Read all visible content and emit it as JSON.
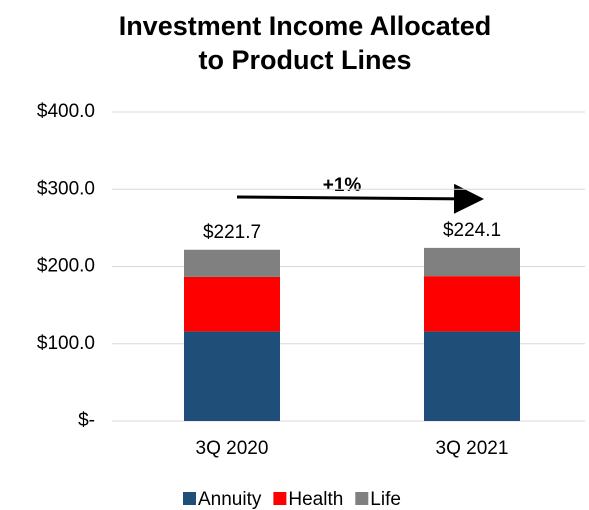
{
  "chart_data": {
    "type": "stacked_bar",
    "title": [
      "Investment Income Allocated",
      "to Product Lines"
    ],
    "categories": [
      "3Q 2020",
      "3Q 2021"
    ],
    "series": [
      {
        "name": "Annuity",
        "color": "#1f4e79",
        "values": [
          116.0,
          116.0
        ]
      },
      {
        "name": "Health",
        "color": "#ff0000",
        "values": [
          70.5,
          71.5
        ]
      },
      {
        "name": "Life",
        "color": "#808080",
        "values": [
          35.2,
          36.6
        ]
      }
    ],
    "totals": {
      "values": [
        221.7,
        224.1
      ],
      "value_labels": [
        "$221.7",
        "$224.1"
      ]
    },
    "annotations": [
      {
        "text": "+1%"
      }
    ],
    "ylim": [
      0,
      400
    ],
    "yticks": [
      {
        "value": 0,
        "label": "$-"
      },
      {
        "value": 100,
        "label": "$100.0"
      },
      {
        "value": 200,
        "label": "$200.0"
      },
      {
        "value": 300,
        "label": "$300.0"
      },
      {
        "value": 400,
        "label": "$400.0"
      }
    ],
    "grid": true,
    "legend": "bottom"
  }
}
